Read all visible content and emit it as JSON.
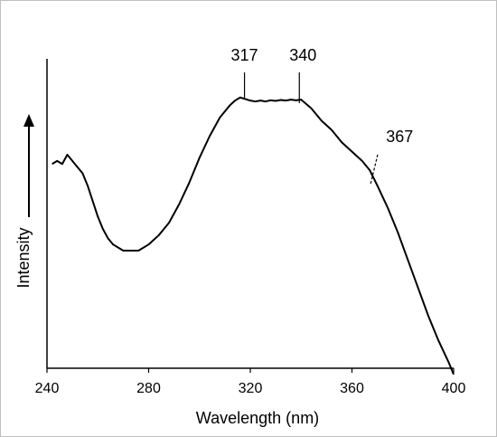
{
  "chart_data": {
    "type": "line",
    "title": "",
    "xlabel": "Wavelength (nm)",
    "ylabel": "Intensity",
    "xlim": [
      240,
      400
    ],
    "ylim": [
      0,
      1
    ],
    "x_ticks": [
      240,
      280,
      320,
      360,
      400
    ],
    "grid": false,
    "series": [
      {
        "x": [
          242,
          244,
          246,
          248,
          250,
          252,
          254,
          256,
          258,
          260,
          262,
          264,
          266,
          268,
          270,
          272,
          274,
          276,
          278,
          280,
          284,
          288,
          292,
          296,
          300,
          304,
          308,
          312,
          314,
          316,
          318,
          320,
          322,
          324,
          326,
          328,
          330,
          332,
          334,
          336,
          338,
          340,
          344,
          348,
          352,
          356,
          360,
          364,
          367,
          370,
          374,
          378,
          382,
          386,
          390,
          394,
          398,
          400
        ],
        "y": [
          0.66,
          0.67,
          0.66,
          0.69,
          0.67,
          0.65,
          0.63,
          0.59,
          0.54,
          0.49,
          0.45,
          0.42,
          0.4,
          0.39,
          0.38,
          0.38,
          0.38,
          0.38,
          0.39,
          0.4,
          0.43,
          0.47,
          0.53,
          0.6,
          0.68,
          0.75,
          0.81,
          0.85,
          0.865,
          0.875,
          0.87,
          0.865,
          0.862,
          0.865,
          0.862,
          0.866,
          0.864,
          0.867,
          0.865,
          0.868,
          0.866,
          0.868,
          0.84,
          0.8,
          0.77,
          0.73,
          0.7,
          0.67,
          0.64,
          0.59,
          0.52,
          0.44,
          0.35,
          0.26,
          0.17,
          0.09,
          0.02,
          -0.02
        ]
      }
    ],
    "annotations": [
      {
        "label": "317",
        "x": 317
      },
      {
        "label": "340",
        "x": 340
      },
      {
        "label": "367",
        "x": 367
      }
    ]
  }
}
